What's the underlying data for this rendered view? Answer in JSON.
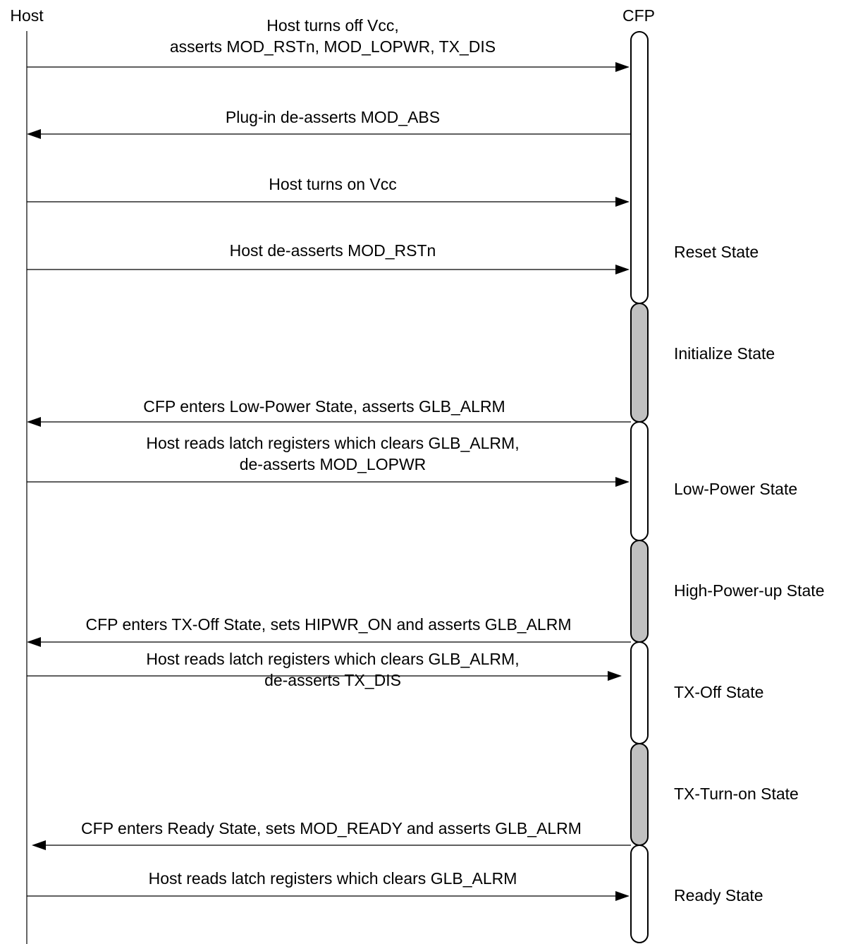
{
  "participants": {
    "host": "Host",
    "module": "CFP"
  },
  "messages": [
    {
      "direction": "to-module",
      "lines": [
        "Host turns off Vcc,",
        "asserts MOD_RSTn, MOD_LOPWR, TX_DIS"
      ]
    },
    {
      "direction": "to-host",
      "lines": [
        "Plug-in de-asserts MOD_ABS"
      ]
    },
    {
      "direction": "to-module",
      "lines": [
        "Host turns on Vcc"
      ]
    },
    {
      "direction": "to-module",
      "lines": [
        "Host de-asserts MOD_RSTn"
      ]
    },
    {
      "direction": "to-host",
      "lines": [
        "CFP enters Low-Power State, asserts  GLB_ALRM"
      ]
    },
    {
      "direction": "to-module",
      "lines": [
        "Host reads latch registers which clears GLB_ALRM,",
        "de-asserts MOD_LOPWR"
      ]
    },
    {
      "direction": "to-host",
      "lines": [
        "CFP enters TX-Off State, sets HIPWR_ON and  asserts GLB_ALRM"
      ]
    },
    {
      "direction": "to-module",
      "lines": [
        "Host reads latch registers which clears GLB_ALRM,",
        "de-asserts TX_DIS"
      ]
    },
    {
      "direction": "to-host",
      "lines": [
        "CFP enters Ready State, sets MOD_READY and  asserts GLB_ALRM"
      ]
    },
    {
      "direction": "to-module",
      "lines": [
        "Host reads latch registers which clears GLB_ALRM"
      ]
    }
  ],
  "states": [
    {
      "label": "Reset State",
      "kind": "steady"
    },
    {
      "label": "Initialize State",
      "kind": "transient"
    },
    {
      "label": "Low-Power State",
      "kind": "steady"
    },
    {
      "label": "High-Power-up State",
      "kind": "transient"
    },
    {
      "label": "TX-Off State",
      "kind": "steady"
    },
    {
      "label": "TX-Turn-on State",
      "kind": "transient"
    },
    {
      "label": "Ready State",
      "kind": "steady"
    }
  ],
  "colors": {
    "line": "#000000",
    "steady_fill": "#ffffff",
    "transient_fill": "#c0c0c0"
  }
}
